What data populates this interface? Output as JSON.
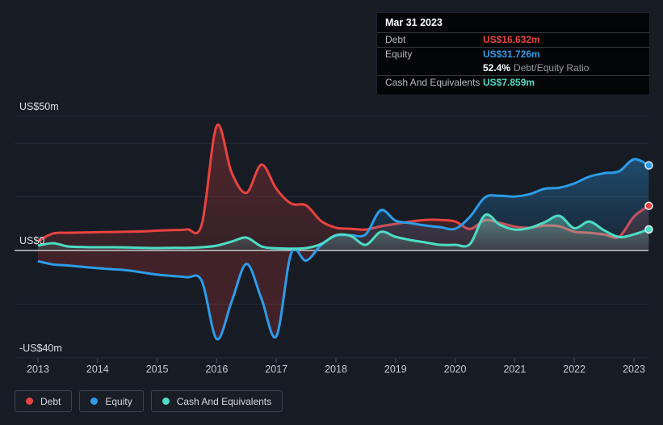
{
  "page": {
    "background": "#161b24"
  },
  "tooltip": {
    "date": "Mar 31 2023",
    "debt_label": "Debt",
    "debt_value": "US$16.632m",
    "equity_label": "Equity",
    "equity_value": "US$31.726m",
    "ratio_value": "52.4%",
    "ratio_label": "Debt/Equity Ratio",
    "cash_label": "Cash And Equivalents",
    "cash_value": "US$7.859m"
  },
  "legend": {
    "items": [
      {
        "label": "Debt",
        "color": "#e8433f"
      },
      {
        "label": "Equity",
        "color": "#2d9ce8"
      },
      {
        "label": "Cash And Equivalents",
        "color": "#4ddcc4"
      }
    ]
  },
  "chart_data": {
    "type": "area",
    "x": {
      "start": 2013,
      "step": 0.25,
      "unit": "year"
    },
    "x_axis": {
      "years": [
        2013,
        2014,
        2015,
        2016,
        2017,
        2018,
        2019,
        2020,
        2021,
        2022,
        2023
      ]
    },
    "y_axis": {
      "unit": "US$ millions",
      "range": [
        -40,
        50
      ],
      "gridlines": [
        50,
        40,
        20,
        0,
        -20,
        -40
      ],
      "labels": [
        {
          "value": 50,
          "text": "US$50m"
        },
        {
          "value": 0,
          "text": "US$0"
        },
        {
          "value": -40,
          "text": "-US$40m"
        }
      ]
    },
    "series": [
      {
        "name": "Debt",
        "color": "#e8433f",
        "values": [
          3.5,
          6.3,
          6.6,
          6.7,
          6.8,
          6.9,
          7.0,
          7.1,
          7.4,
          7.6,
          7.9,
          9.8,
          46.5,
          29.0,
          21.5,
          32.0,
          23.0,
          17.5,
          16.8,
          11.0,
          8.5,
          8.1,
          7.8,
          9.0,
          9.9,
          10.8,
          11.4,
          11.4,
          10.8,
          8.0,
          11.3,
          10.3,
          8.9,
          8.5,
          9.3,
          9.0,
          7.0,
          6.6,
          6.0,
          5.1,
          12.6,
          16.632
        ]
      },
      {
        "name": "Equity",
        "color": "#2d9ce8",
        "values": [
          -4.0,
          -5.2,
          -5.6,
          -6.1,
          -6.6,
          -7.0,
          -7.4,
          -8.2,
          -9.0,
          -9.5,
          -10.0,
          -11.4,
          -33.0,
          -19.0,
          -5.0,
          -18.0,
          -32.0,
          -1.0,
          -3.8,
          2.0,
          5.5,
          5.7,
          6.0,
          15.0,
          11.1,
          10.2,
          9.3,
          8.7,
          8.1,
          12.6,
          19.8,
          20.4,
          20.1,
          21.0,
          23.0,
          23.4,
          25.0,
          27.5,
          28.8,
          29.5,
          34.0,
          31.726
        ]
      },
      {
        "name": "Cash And Equivalents",
        "color": "#4ddcc4",
        "values": [
          1.8,
          2.7,
          1.5,
          1.3,
          1.2,
          1.2,
          1.1,
          1.0,
          0.9,
          1.0,
          1.0,
          1.2,
          1.8,
          3.3,
          4.8,
          1.5,
          0.8,
          0.7,
          0.9,
          2.4,
          5.7,
          5.4,
          2.1,
          6.9,
          5.1,
          3.9,
          3.0,
          2.1,
          2.1,
          2.4,
          13.2,
          9.6,
          7.8,
          8.4,
          10.5,
          12.9,
          8.3,
          10.8,
          7.5,
          5.0,
          6.0,
          7.859
        ]
      }
    ]
  }
}
